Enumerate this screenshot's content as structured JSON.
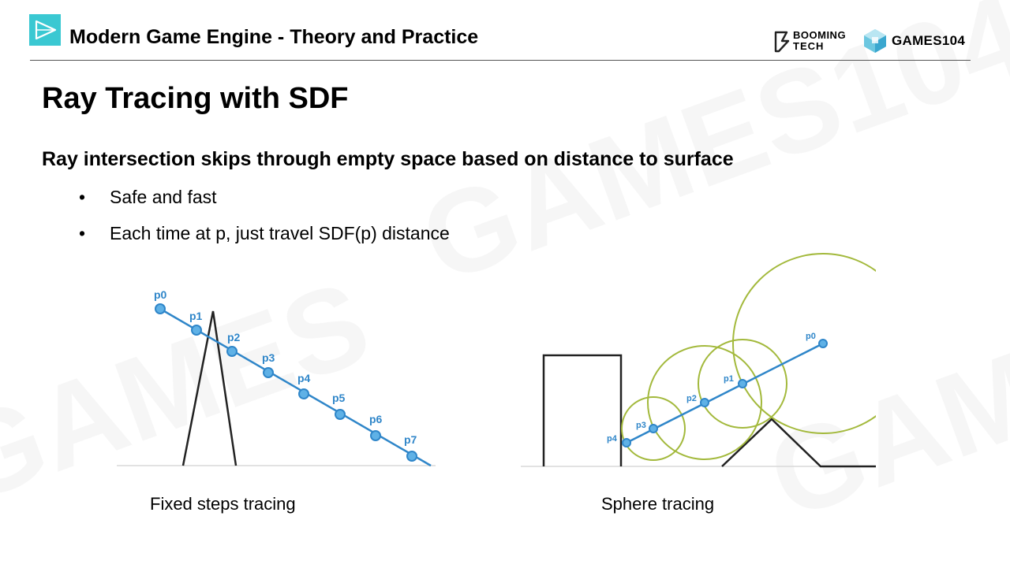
{
  "header": {
    "course_title": "Modern Game Engine - Theory and Practice",
    "brand_booming_line1": "BOOMING",
    "brand_booming_line2": "TECH",
    "brand_games": "GAMES104",
    "logo_icon": "play-triangle-icon",
    "accent_color": "#3ac8d2"
  },
  "slide": {
    "title": "Ray Tracing with SDF",
    "subheading": "Ray intersection skips through empty space based on distance to surface",
    "bullets": [
      {
        "marker": "•",
        "text": "Safe and fast"
      },
      {
        "marker": "•",
        "text": "Each time at p, just travel SDF(p) distance"
      }
    ]
  },
  "figures": {
    "fixed_steps": {
      "caption": "Fixed steps tracing",
      "points": [
        "p0",
        "p1",
        "p2",
        "p3",
        "p4",
        "p5",
        "p6",
        "p7"
      ]
    },
    "sphere_tracing": {
      "caption": "Sphere tracing",
      "points": [
        "p0",
        "p1",
        "p2",
        "p3",
        "p4"
      ]
    },
    "ray_color": "#2f86c9",
    "sphere_color": "#a3b93c"
  }
}
